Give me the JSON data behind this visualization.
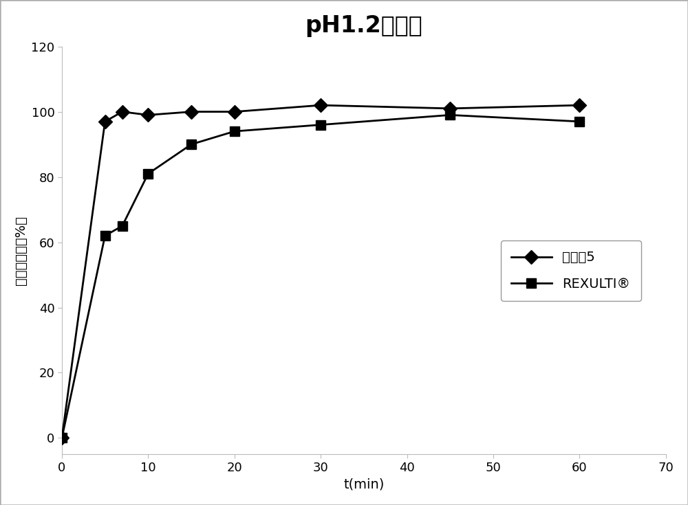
{
  "title": "pH1.2稀盐酸",
  "xlabel": "t(min)",
  "ylabel": "累积溶出度（%）",
  "xlim": [
    0,
    70
  ],
  "ylim": [
    -5,
    120
  ],
  "xticks": [
    0,
    10,
    20,
    30,
    40,
    50,
    60,
    70
  ],
  "yticks": [
    0,
    20,
    40,
    60,
    80,
    100,
    120
  ],
  "series1_label": "实施例5",
  "series1_x": [
    0,
    5,
    7,
    10,
    15,
    20,
    30,
    45,
    60
  ],
  "series1_y": [
    0,
    97,
    100,
    99,
    100,
    100,
    102,
    101,
    102
  ],
  "series2_label": "REXULTI®",
  "series2_x": [
    0,
    5,
    7,
    10,
    15,
    20,
    30,
    45,
    60
  ],
  "series2_y": [
    0,
    62,
    65,
    81,
    90,
    94,
    96,
    99,
    97
  ],
  "line_color": "#000000",
  "background_color": "#ffffff",
  "title_fontsize": 24,
  "axis_fontsize": 14,
  "tick_fontsize": 13,
  "legend_fontsize": 14
}
